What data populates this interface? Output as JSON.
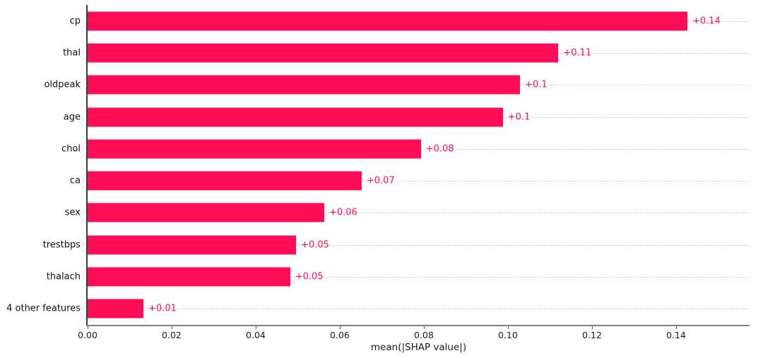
{
  "chart_data": {
    "type": "bar",
    "orientation": "horizontal",
    "title": "",
    "xlabel": "mean(|SHAP value|)",
    "ylabel": "",
    "categories": [
      "cp",
      "thal",
      "oldpeak",
      "age",
      "chol",
      "ca",
      "sex",
      "trestbps",
      "thalach",
      "4 other features"
    ],
    "values": [
      0.1427,
      0.112,
      0.1029,
      0.0988,
      0.0793,
      0.0652,
      0.0563,
      0.0496,
      0.0482,
      0.0133
    ],
    "bar_labels": [
      "+0.14",
      "+0.11",
      "+0.1",
      "+0.1",
      "+0.08",
      "+0.07",
      "+0.06",
      "+0.05",
      "+0.05",
      "+0.01"
    ],
    "xlim": [
      0,
      0.1575
    ],
    "xticks": [
      0.0,
      0.02,
      0.04,
      0.06,
      0.08,
      0.1,
      0.12,
      0.14
    ],
    "xtick_labels": [
      "0.00",
      "0.02",
      "0.04",
      "0.06",
      "0.08",
      "0.10",
      "0.12",
      "0.14"
    ],
    "grid": "horizontal-dotted",
    "legend": "none",
    "colors": {
      "bar": "#ff0d57",
      "bar_label": "#ff0d57",
      "gridline": "#c9c9c9",
      "left_spine": "#3b3b3b",
      "bottom_spine": "#808080",
      "tick_text": "#1a1a1a",
      "background": "#ffffff"
    }
  }
}
